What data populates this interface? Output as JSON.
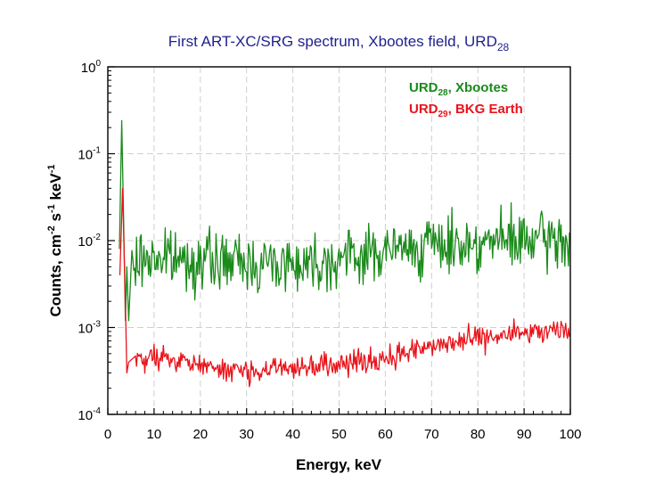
{
  "chart_data": {
    "type": "line",
    "title": {
      "main": "First ART-XC/SRG spectrum, Xbootes field, URD",
      "sub": "28"
    },
    "xlabel": "Energy, keV",
    "ylabel": {
      "p1": "Counts, cm",
      "e1": "-2",
      "p2": " s",
      "e2": "-1",
      "p3": " keV",
      "e3": "-1"
    },
    "xlim": [
      0,
      100
    ],
    "ylim": [
      0.0001,
      1
    ],
    "yscale": "log",
    "grid": true,
    "x_ticks": [
      "0",
      "10",
      "20",
      "30",
      "40",
      "50",
      "60",
      "70",
      "80",
      "90",
      "100"
    ],
    "y_ticks": [
      {
        "base": "10",
        "exp": "-4"
      },
      {
        "base": "10",
        "exp": "-3"
      },
      {
        "base": "10",
        "exp": "-2"
      },
      {
        "base": "10",
        "exp": "-1"
      },
      {
        "base": "10",
        "exp": "0"
      }
    ],
    "legend_position": "top-right",
    "series": [
      {
        "name": {
          "a": "URD",
          "sub": "28",
          "b": ", Xbootes"
        },
        "color": "#1a8a1a",
        "points": [
          [
            2.5,
            0.008
          ],
          [
            3.0,
            0.24
          ],
          [
            3.4,
            0.02
          ],
          [
            3.8,
            0.0012
          ],
          [
            4.1,
            0.005
          ],
          [
            4.5,
            0.0012
          ],
          [
            5,
            0.0045
          ],
          [
            7,
            0.006
          ],
          [
            10,
            0.0065
          ],
          [
            15,
            0.006
          ],
          [
            20,
            0.0058
          ],
          [
            25,
            0.0058
          ],
          [
            30,
            0.0055
          ],
          [
            35,
            0.0055
          ],
          [
            40,
            0.0056
          ],
          [
            45,
            0.0058
          ],
          [
            50,
            0.0062
          ],
          [
            55,
            0.0068
          ],
          [
            60,
            0.0075
          ],
          [
            65,
            0.0082
          ],
          [
            70,
            0.0088
          ],
          [
            75,
            0.0092
          ],
          [
            80,
            0.0095
          ],
          [
            85,
            0.0098
          ],
          [
            90,
            0.0098
          ],
          [
            95,
            0.01
          ],
          [
            100,
            0.0098
          ]
        ]
      },
      {
        "name": {
          "a": "URD",
          "sub": "29",
          "b": ", BKG Earth"
        },
        "color": "#e8141b",
        "points": [
          [
            2.6,
            0.004
          ],
          [
            3.2,
            0.04
          ],
          [
            3.5,
            0.008
          ],
          [
            3.9,
            0.0011
          ],
          [
            4.1,
            0.0003
          ],
          [
            4.5,
            0.0004
          ],
          [
            6,
            0.00042
          ],
          [
            10,
            0.00043
          ],
          [
            15,
            0.0004
          ],
          [
            20,
            0.00037
          ],
          [
            25,
            0.00033
          ],
          [
            30,
            0.00032
          ],
          [
            35,
            0.00034
          ],
          [
            40,
            0.00036
          ],
          [
            45,
            0.00038
          ],
          [
            50,
            0.00038
          ],
          [
            55,
            0.0004
          ],
          [
            60,
            0.00045
          ],
          [
            65,
            0.00052
          ],
          [
            70,
            0.0006
          ],
          [
            75,
            0.00067
          ],
          [
            80,
            0.00073
          ],
          [
            85,
            0.0008
          ],
          [
            90,
            0.00085
          ],
          [
            95,
            0.00088
          ],
          [
            100,
            0.00088
          ]
        ]
      }
    ]
  }
}
